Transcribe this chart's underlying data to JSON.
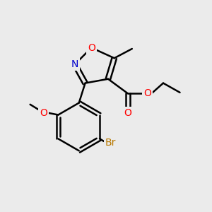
{
  "bg_color": "#ebebeb",
  "bond_color": "#000000",
  "bond_width": 1.8,
  "atom_colors": {
    "O": "#ff0000",
    "N": "#0000cc",
    "Br": "#b87800",
    "C": "#000000"
  },
  "font_size": 10
}
